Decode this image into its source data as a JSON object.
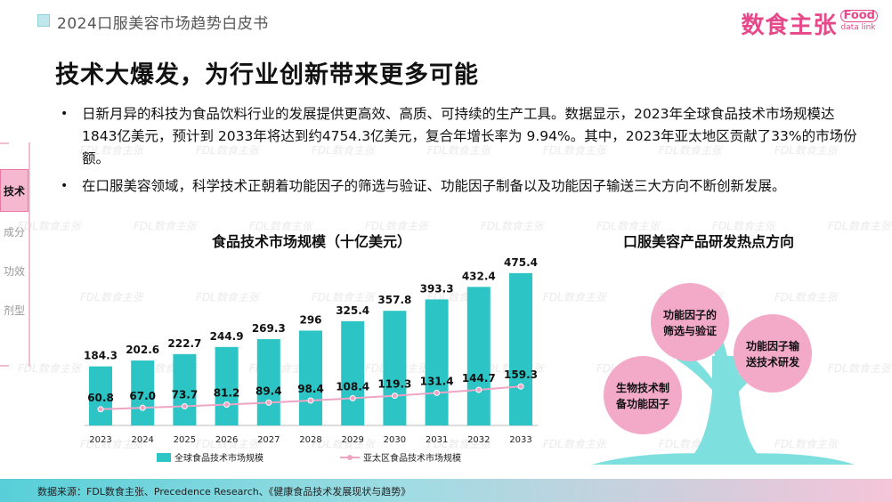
{
  "header": {
    "report_title": "2024口服美容市场趋势白皮书",
    "brand_name": "数食主张",
    "brand_food": "Food",
    "brand_link": "data link"
  },
  "page_title": "技术大爆发，为行业创新带来更多可能",
  "bullets": [
    "日新月异的科技为食品饮料行业的发展提供更高效、高质、可持续的生产工具。数据显示，2023年全球食品技术市场规模达1843亿美元，预计到 2033年将达到约4754.3亿美元，复合年增长率为 9.94%。其中，2023年亚太地区贡献了33%的市场份额。",
    "在口服美容领域，科学技术正朝着功能因子的筛选与验证、功能因子制备以及功能因子输送三大方向不断创新发展。"
  ],
  "side_tabs": [
    {
      "label": "技术",
      "active": true
    },
    {
      "label": "成分",
      "active": false
    },
    {
      "label": "功效",
      "active": false
    },
    {
      "label": "剂型",
      "active": false
    }
  ],
  "watermark_text": "FDL数食主张",
  "chart_data": {
    "type": "bar",
    "title": "食品技术市场规模（十亿美元）",
    "categories": [
      "2023",
      "2024",
      "2025",
      "2026",
      "2027",
      "2028",
      "2029",
      "2030",
      "2031",
      "2032",
      "2033"
    ],
    "series": [
      {
        "name": "全球食品技术市场规模",
        "type": "bar",
        "color": "#2cc4c4",
        "values": [
          184.3,
          202.6,
          222.7,
          244.9,
          269.3,
          296,
          325.4,
          357.8,
          393.3,
          432.4,
          475.4
        ]
      },
      {
        "name": "亚太区食品技术市场规模",
        "type": "line",
        "color": "#f0a4c4",
        "values": [
          60.8,
          67.0,
          73.7,
          81.2,
          89.4,
          98.4,
          108.4,
          119.3,
          131.4,
          144.7,
          159.3
        ]
      }
    ],
    "value_labels": [
      [
        "184.3",
        "202.6",
        "222.7",
        "244.9",
        "269.3",
        "296",
        "325.4",
        "357.8",
        "393.3",
        "432.4",
        "475.4"
      ],
      [
        "60.8",
        "67.0",
        "73.7",
        "81.2",
        "89.4",
        "98.4",
        "108.4",
        "119.3",
        "131.4",
        "144.7",
        "159.3"
      ]
    ],
    "ylim": [
      0,
      500
    ],
    "legend_position": "bottom",
    "grid": false
  },
  "tree": {
    "title": "口服美容产品研发热点方向",
    "bubbles": [
      "功能因子的筛选与验证",
      "功能因子输送技术研发",
      "生物技术制备功能因子"
    ],
    "trunk_color": "#7ee0de",
    "bubble_color": "#f3a9c8"
  },
  "footer": {
    "source": "数据来源：FDL数食主张、Precedence Research、《健康食品技术发展现状与趋势》"
  }
}
